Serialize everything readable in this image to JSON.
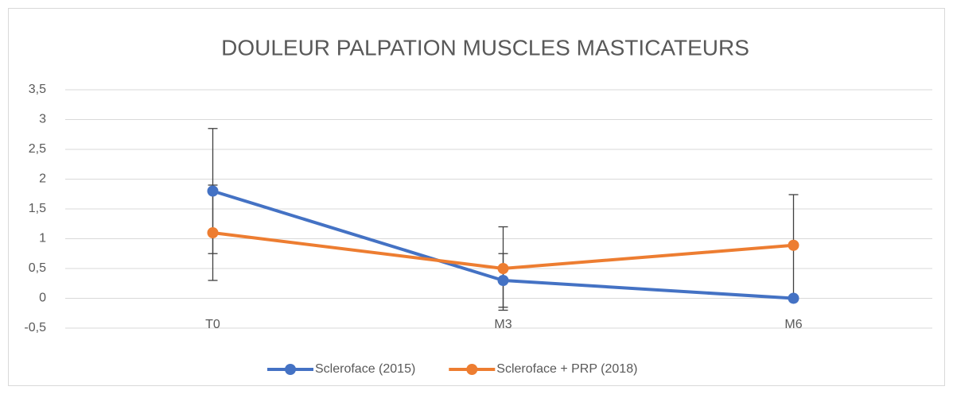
{
  "chart_data": {
    "type": "line",
    "title": "DOULEUR PALPATION MUSCLES MASTICATEURS",
    "categories": [
      "T0",
      "M3",
      "M6"
    ],
    "series": [
      {
        "name": "Scleroface (2015)",
        "color": "#4472c4",
        "values": [
          1.8,
          0.3,
          0
        ],
        "errors": [
          1.05,
          0.45,
          0
        ]
      },
      {
        "name": "Scleroface + PRP (2018)",
        "color": "#ed7d31",
        "values": [
          1.1,
          0.5,
          0.89
        ],
        "errors": [
          0.8,
          0.7,
          0.85
        ]
      }
    ],
    "ylim": [
      -0.5,
      3.5
    ],
    "yticks": [
      {
        "value": -0.5,
        "label": "-0,5"
      },
      0,
      {
        "value": 0.5,
        "label": "0,5"
      },
      1,
      {
        "value": 1.5,
        "label": "1,5"
      },
      2,
      {
        "value": 2.5,
        "label": "2,5"
      },
      3,
      {
        "value": 3.5,
        "label": "3,5"
      }
    ],
    "grid": true,
    "legend": "bottom"
  }
}
